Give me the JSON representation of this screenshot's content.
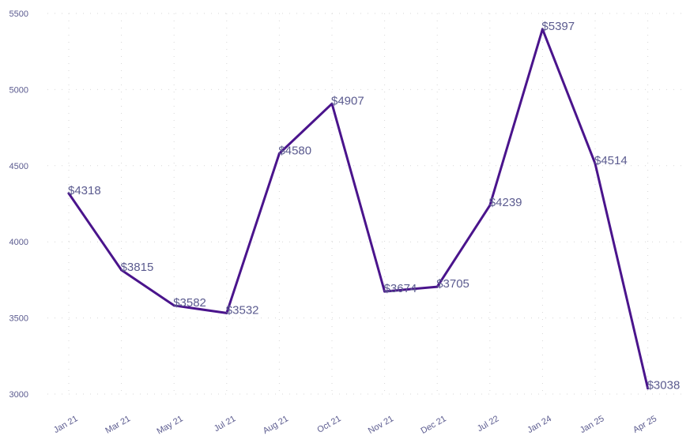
{
  "chart_data": {
    "type": "line",
    "categories": [
      "Jan 21",
      "Mar 21",
      "May 21",
      "Jul 21",
      "Aug 21",
      "Oct 21",
      "Nov 21",
      "Dec 21",
      "Jul 22",
      "Jan 24",
      "Jan 25",
      "Apr 25"
    ],
    "series": [
      {
        "values": [
          4318,
          3815,
          3582,
          3532,
          4580,
          4907,
          3674,
          3705,
          4239,
          5397,
          4514,
          3038
        ],
        "labels": [
          "$4318",
          "$3815",
          "$3582",
          "$3532",
          "$4580",
          "$4907",
          "$3674",
          "$3705",
          "$4239",
          "$5397",
          "$4514",
          "$3038"
        ]
      }
    ],
    "yticks": [
      3000,
      3500,
      4000,
      4500,
      5000,
      5500
    ],
    "ylim": [
      3000,
      5500
    ],
    "grid": true,
    "colors": {
      "line": "#4a148c",
      "text": "#5b5b8f"
    }
  }
}
